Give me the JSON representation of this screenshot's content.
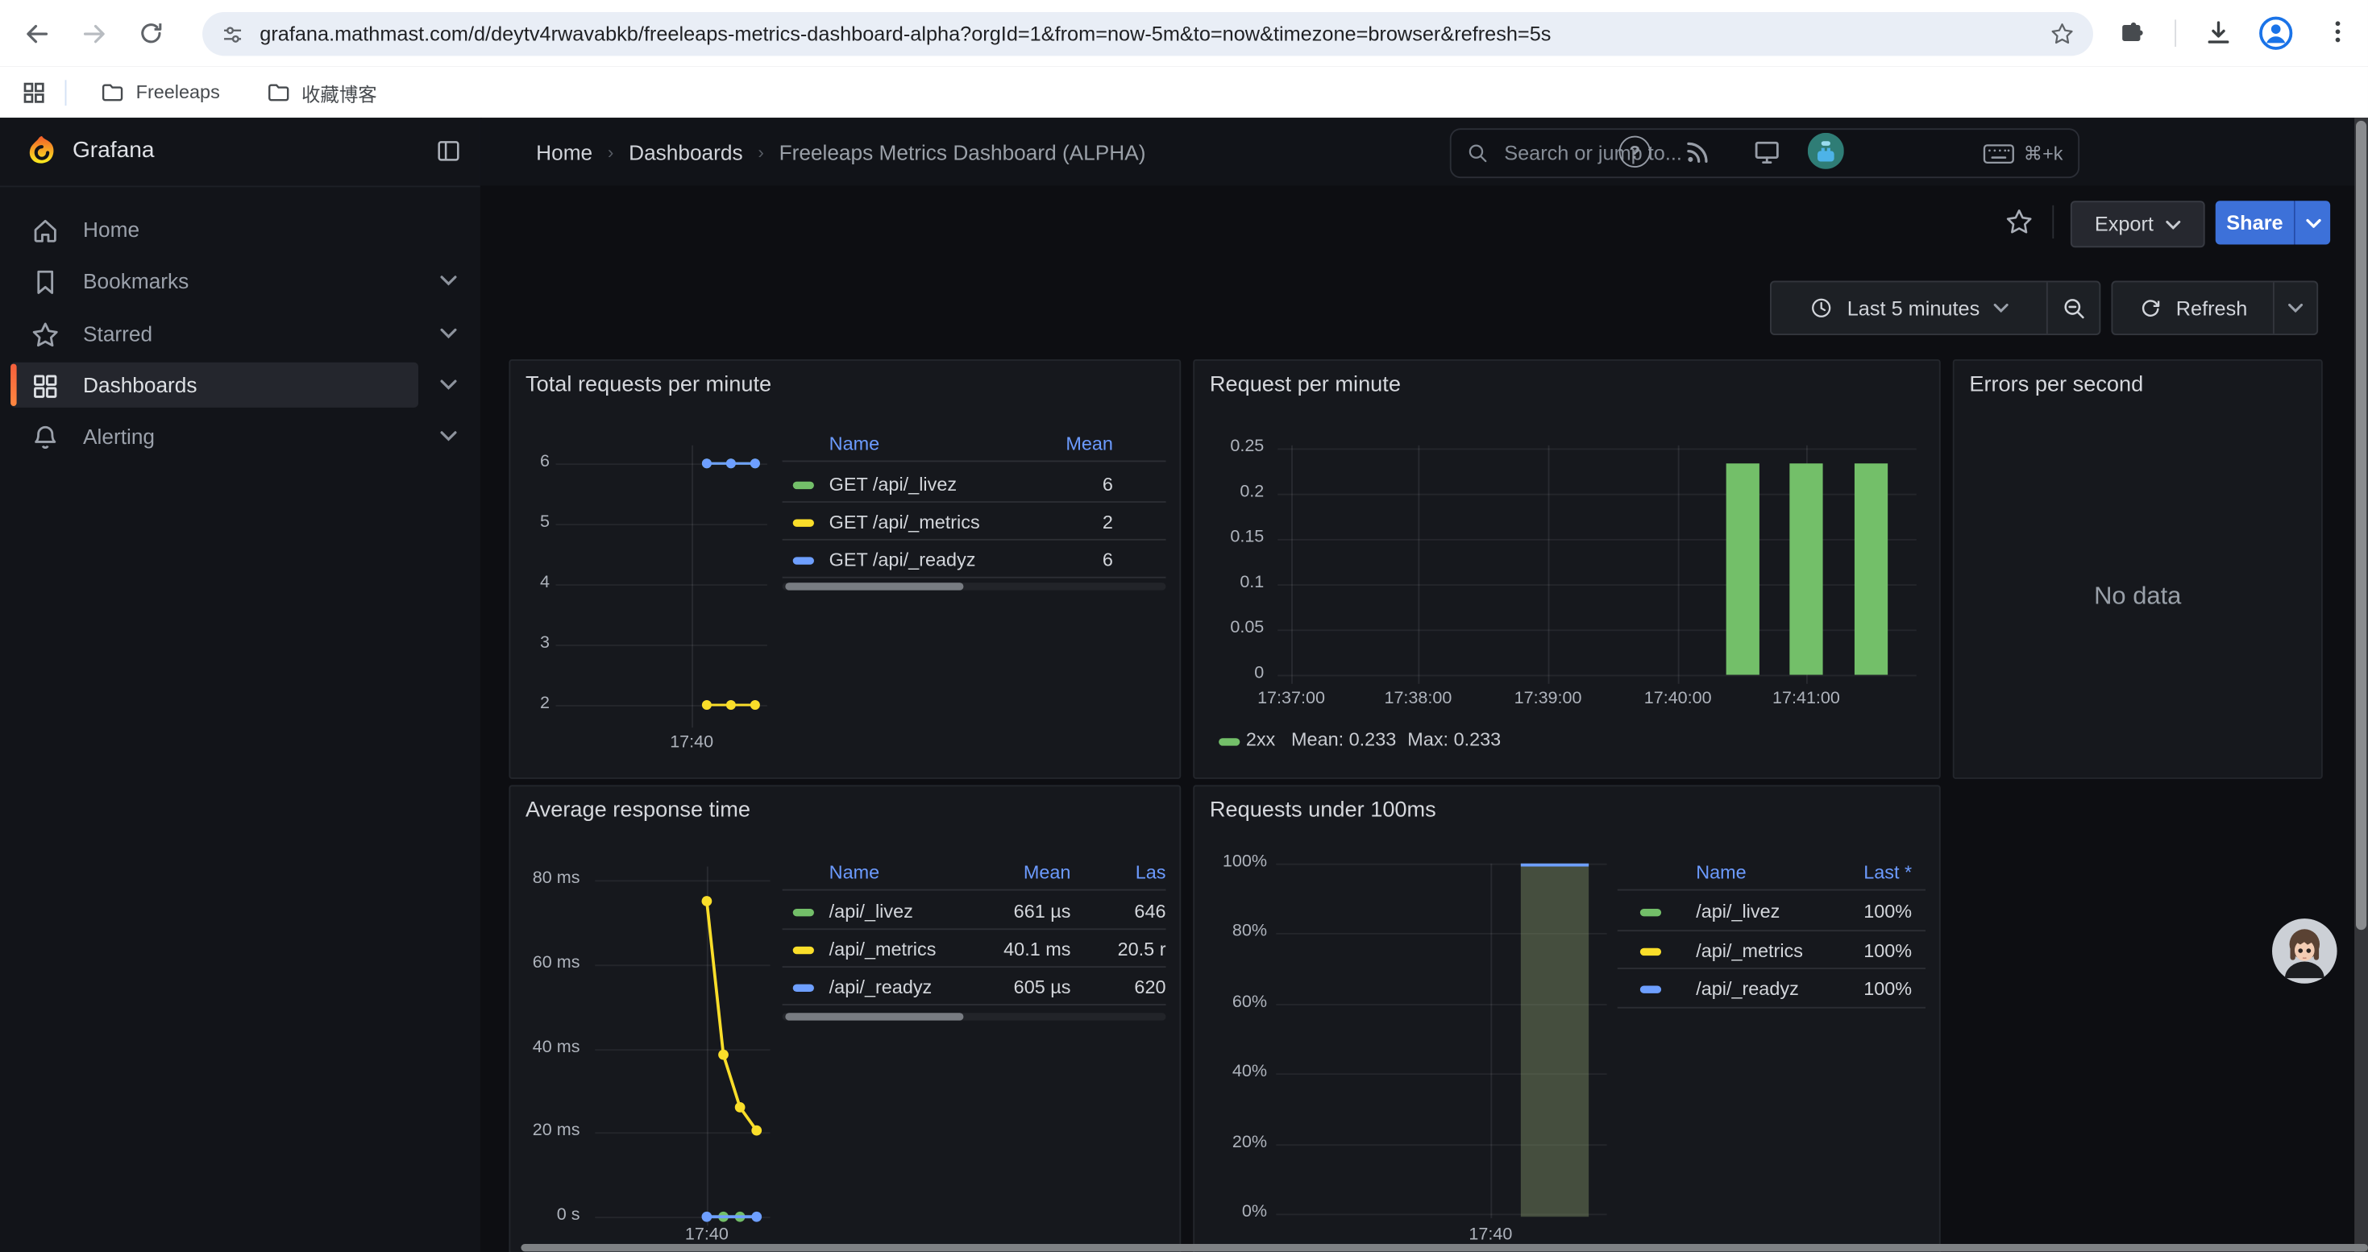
{
  "browser": {
    "url": "grafana.mathmast.com/d/deytv4rwavabkb/freeleaps-metrics-dashboard-alpha?orgId=1&from=now-5m&to=now&timezone=browser&refresh=5s",
    "bookmarks": [
      "Freeleaps",
      "收藏博客"
    ]
  },
  "sidebar": {
    "brand": "Grafana",
    "items": [
      {
        "label": "Home",
        "icon": "home-icon",
        "expandable": false,
        "active": false
      },
      {
        "label": "Bookmarks",
        "icon": "bookmark-icon",
        "expandable": true,
        "active": false
      },
      {
        "label": "Starred",
        "icon": "star-icon",
        "expandable": true,
        "active": false
      },
      {
        "label": "Dashboards",
        "icon": "dashboards-grid-icon",
        "expandable": true,
        "active": true
      },
      {
        "label": "Alerting",
        "icon": "bell-icon",
        "expandable": true,
        "active": false
      }
    ]
  },
  "header": {
    "breadcrumbs": [
      "Home",
      "Dashboards",
      "Freeleaps Metrics Dashboard (ALPHA)"
    ],
    "breadcrumb_separator": "›",
    "search_placeholder": "Search or jump to...",
    "search_shortcut": "⌘+k",
    "help_glyph": "?"
  },
  "toolbar": {
    "export_label": "Export",
    "share_label": "Share"
  },
  "timebar": {
    "range_label": "Last 5 minutes",
    "refresh_label": "Refresh"
  },
  "colors": {
    "accent_orange_top": "#ff8840",
    "accent_orange_bottom": "#f55f3c",
    "primary_blue": "#3d71d9",
    "link_blue": "#6c9bff",
    "chrome_blue": "#1a73e8",
    "series_green": "#73BF69",
    "series_yellow": "#FADE2A",
    "series_blue": "#6E9FFF",
    "panel_bg": "#16181d",
    "canvas_bg": "#0d0e12"
  },
  "icons": {
    "back-icon": "left arrow",
    "forward-icon": "right arrow (disabled)",
    "reload-icon": "circular arrow",
    "site-info-icon": "tune sliders",
    "bookmark-star-icon": "star outline",
    "extensions-icon": "puzzle piece",
    "download-icon": "arrow into tray",
    "profile-icon": "blue person in ring",
    "menu-icon": "three vertical dots",
    "apps-grid-icon": "2x2 squares",
    "folder-icon": "folder outline",
    "grafana-logo": "orange flame swirl",
    "panel-toggle-icon": "split rectangle",
    "search-icon": "magnifier",
    "keyboard-icon": "keyboard",
    "help-icon": "question mark circle",
    "news-icon": "rss",
    "monitor-icon": "display screen",
    "clock-icon": "clock face",
    "zoom-out-icon": "magnifier with minus",
    "refresh-icon": "circular arrows",
    "chevron-down-icon": "caret down"
  },
  "chart_data": [
    {
      "id": "total-requests-per-minute",
      "type": "line",
      "title": "Total requests per minute",
      "y_ticks": [
        6,
        5,
        4,
        3,
        2
      ],
      "x_ticks": [
        "17:40"
      ],
      "grid": true,
      "legend_position": "right-table",
      "series": [
        {
          "name": "GET /api/_livez",
          "color": "#73BF69",
          "x": [
            "17:40:30",
            "17:41:00",
            "17:41:30"
          ],
          "y": [
            6,
            6,
            6
          ]
        },
        {
          "name": "GET /api/_metrics",
          "color": "#FADE2A",
          "x": [
            "17:40:30",
            "17:41:00",
            "17:41:30"
          ],
          "y": [
            2,
            2,
            2
          ]
        },
        {
          "name": "GET /api/_readyz",
          "color": "#6E9FFF",
          "x": [
            "17:40:30",
            "17:41:00",
            "17:41:30"
          ],
          "y": [
            6,
            6,
            6
          ]
        }
      ],
      "legend": {
        "columns": [
          "Name",
          "Mean"
        ],
        "rows": [
          {
            "name": "GET /api/_livez",
            "color": "#73BF69",
            "values": [
              "6"
            ]
          },
          {
            "name": "GET /api/_metrics",
            "color": "#FADE2A",
            "values": [
              "2"
            ]
          },
          {
            "name": "GET /api/_readyz",
            "color": "#6E9FFF",
            "values": [
              "6"
            ]
          }
        ],
        "has_hscrollbar": true
      }
    },
    {
      "id": "request-per-minute",
      "type": "bar",
      "title": "Request per minute",
      "y_ticks": [
        "0.25",
        "0.2",
        "0.15",
        "0.1",
        "0.05",
        "0"
      ],
      "ylim": [
        0,
        0.25
      ],
      "x_ticks": [
        "17:37:00",
        "17:38:00",
        "17:39:00",
        "17:40:00",
        "17:41:00"
      ],
      "grid": true,
      "bars": {
        "name": "2xx",
        "color": "#73BF69",
        "x": [
          "17:40:30",
          "17:41:00",
          "17:41:30"
        ],
        "y": [
          0.233,
          0.233,
          0.233
        ]
      },
      "legend_line": {
        "name": "2xx",
        "color": "#73BF69",
        "stats": [
          "Mean: 0.233",
          "Max: 0.233"
        ]
      }
    },
    {
      "id": "errors-per-second",
      "type": "none",
      "title": "Errors per second",
      "no_data_text": "No data"
    },
    {
      "id": "average-response-time",
      "type": "line",
      "title": "Average response time",
      "y_ticks": [
        "80 ms",
        "60 ms",
        "40 ms",
        "20 ms",
        "0 s"
      ],
      "y_values": [
        80,
        60,
        40,
        20,
        0
      ],
      "x_ticks": [
        "17:40"
      ],
      "grid": true,
      "y_unit": "ms",
      "series": [
        {
          "name": "/api/_livez",
          "color": "#73BF69",
          "x": [
            "17:40:00",
            "17:40:30",
            "17:41:00",
            "17:41:30"
          ],
          "y": [
            0,
            0,
            0,
            0
          ]
        },
        {
          "name": "/api/_metrics",
          "color": "#FADE2A",
          "x": [
            "17:40:00",
            "17:40:30",
            "17:41:00",
            "17:41:30"
          ],
          "y": [
            75,
            38.5,
            26,
            20.5
          ]
        },
        {
          "name": "/api/_readyz",
          "color": "#6E9FFF",
          "x": [
            "17:40:00",
            "17:40:30",
            "17:41:00",
            "17:41:30"
          ],
          "y": [
            0,
            0,
            0,
            0
          ]
        }
      ],
      "legend": {
        "columns": [
          "Name",
          "Mean",
          "Las"
        ],
        "rows": [
          {
            "name": "/api/_livez",
            "color": "#73BF69",
            "values": [
              "661 µs",
              "646"
            ]
          },
          {
            "name": "/api/_metrics",
            "color": "#FADE2A",
            "values": [
              "40.1 ms",
              "20.5 r"
            ]
          },
          {
            "name": "/api/_readyz",
            "color": "#6E9FFF",
            "values": [
              "605 µs",
              "620"
            ]
          }
        ],
        "has_hscrollbar": true
      }
    },
    {
      "id": "requests-under-100ms",
      "type": "bar",
      "title": "Requests under 100ms",
      "y_ticks": [
        "100%",
        "80%",
        "60%",
        "40%",
        "20%",
        "0%"
      ],
      "ylim": [
        0,
        100
      ],
      "x_ticks": [
        "17:40"
      ],
      "grid": true,
      "bars": {
        "color": "#73BF69",
        "fill": "rgba(140,160,112,0.40)",
        "top_line_color": "#6E9FFF",
        "x": [
          "17:40:30"
        ],
        "y": [
          100
        ]
      },
      "legend": {
        "columns": [
          "Name",
          "Last *"
        ],
        "rows": [
          {
            "name": "/api/_livez",
            "color": "#73BF69",
            "values": [
              "100%"
            ]
          },
          {
            "name": "/api/_metrics",
            "color": "#FADE2A",
            "values": [
              "100%"
            ]
          },
          {
            "name": "/api/_readyz",
            "color": "#6E9FFF",
            "values": [
              "100%"
            ]
          }
        ]
      }
    }
  ]
}
